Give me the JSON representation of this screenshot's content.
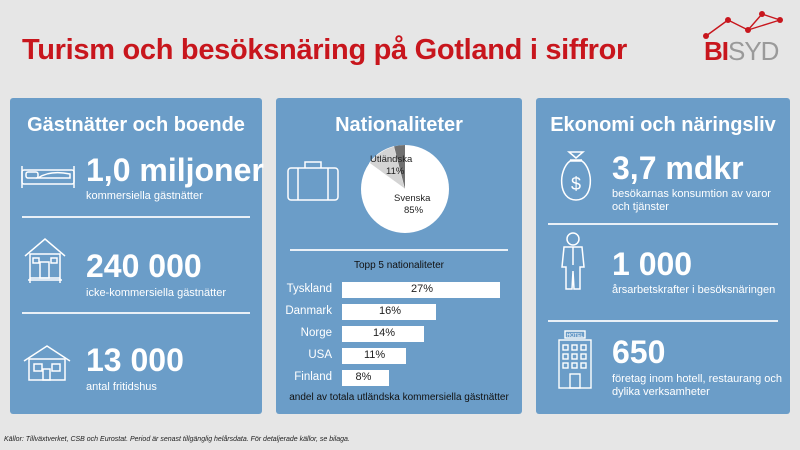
{
  "title": "Turism och besöksnäring på Gotland i siffror",
  "logo": {
    "bi": "BI",
    "syd": "SYD",
    "accent": "#c8161d"
  },
  "panel_color": "#6b9dc8",
  "panels": {
    "boende": {
      "title": "Gästnätter och boende",
      "stats": [
        {
          "value": "1,0 miljoner",
          "label": "kommersiella gästnätter",
          "icon": "bed-icon"
        },
        {
          "value": "240 000",
          "label": "icke-kommersiella gästnätter",
          "icon": "cabin-icon"
        },
        {
          "value": "13 000",
          "label": "antal fritidshus",
          "icon": "house-icon"
        }
      ]
    },
    "nationaliteter": {
      "title": "Nationaliteter",
      "suitcase_icon": "suitcase-icon",
      "pie": [
        {
          "label": "Svenska",
          "pct": "85%",
          "value": 85
        },
        {
          "label": "Utländska",
          "pct": "11%",
          "value": 11
        }
      ],
      "top5_title": "Topp 5 nationaliteter",
      "bars": [
        {
          "label": "Tyskland",
          "value": 27,
          "display": "27%"
        },
        {
          "label": "Danmark",
          "value": 16,
          "display": "16%"
        },
        {
          "label": "Norge",
          "value": 14,
          "display": "14%"
        },
        {
          "label": "USA",
          "value": 11,
          "display": "11%"
        },
        {
          "label": "Finland",
          "value": 8,
          "display": "8%"
        }
      ],
      "caption": "andel av totala utländska kommersiella gästnätter"
    },
    "ekonomi": {
      "title": "Ekonomi och näringsliv",
      "stats": [
        {
          "value": "3,7 mdkr",
          "label": "besökarnas konsumtion av varor och tjänster",
          "icon": "money-bag-icon"
        },
        {
          "value": "1 000",
          "label": "årsarbetskrafter i besöksnäringen",
          "icon": "worker-icon"
        },
        {
          "value": "650",
          "label": "företag inom hotell, restaurang och dylika verksamheter",
          "icon": "hotel-icon",
          "icon_text": "HOTEL"
        }
      ]
    }
  },
  "footer": "Källor: Tillväxtverket, CSB och Eurostat. Period är senast tillgänglig helårsdata. För detaljerade källor, se bilaga."
}
